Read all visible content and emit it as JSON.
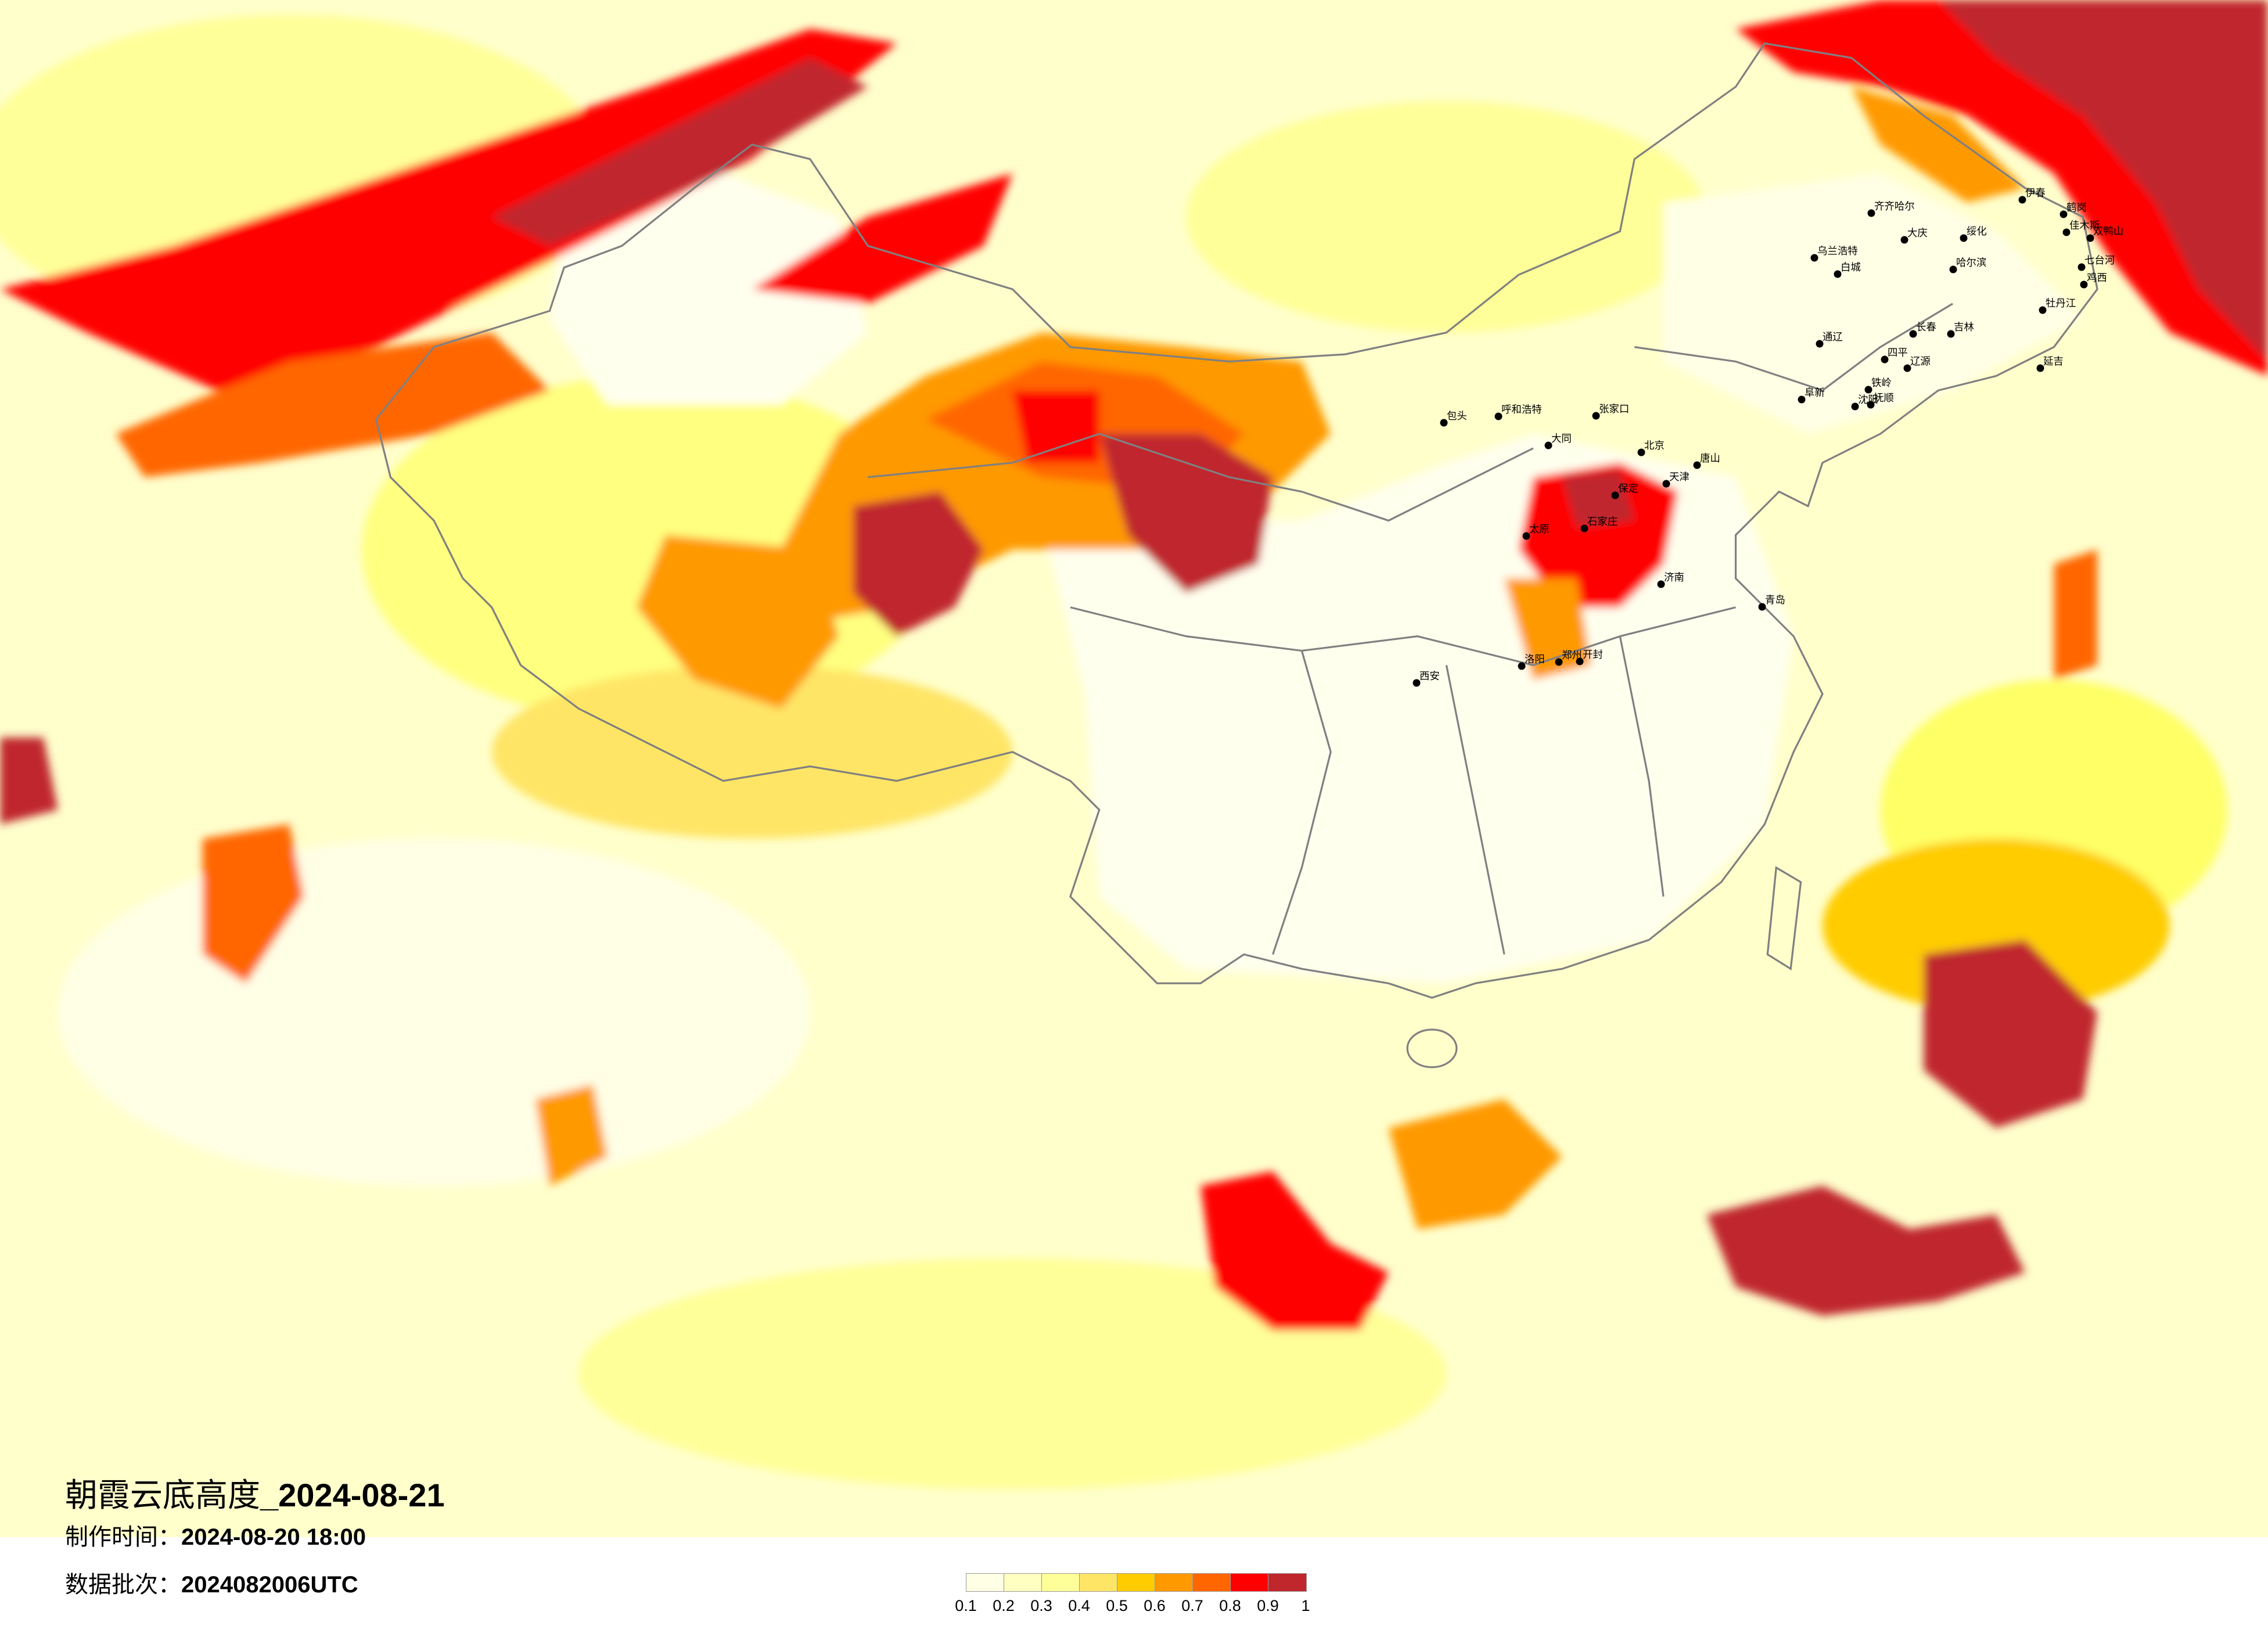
{
  "map": {
    "title": "朝霞云底高度",
    "title_date": "_2024-08-21",
    "made_time_label": "制作时间：",
    "made_time_value": "2024-08-20 18:00",
    "batch_label": "数据批次：",
    "batch_value": "2024082006UTC",
    "cities": [
      "北京",
      "天津",
      "石家庄",
      "济南",
      "郑州",
      "太原",
      "呼和浩特",
      "包头",
      "西安",
      "青岛",
      "大同",
      "张家口",
      "唐山",
      "保定",
      "洛阳",
      "开封",
      "齐齐哈尔",
      "大庆",
      "绥化",
      "哈尔滨",
      "伊春",
      "鹤岗",
      "佳木斯",
      "双鸭山",
      "七台河",
      "鸡西",
      "牡丹江",
      "长春",
      "吉林",
      "通辽",
      "四平",
      "辽源",
      "延吉",
      "乌兰浩特",
      "白城",
      "铁岭",
      "沈阳",
      "抚顺",
      "阜新"
    ]
  },
  "legend": {
    "colors": [
      "#ffffe6",
      "#ffffc2",
      "#ffff99",
      "#ffe566",
      "#ffcc00",
      "#ff9900",
      "#ff6600",
      "#ff0000",
      "#c0272d"
    ],
    "ticks": [
      "0.1",
      "0.2",
      "0.3",
      "0.4",
      "0.5",
      "0.6",
      "0.7",
      "0.8",
      "0.9",
      "1"
    ]
  }
}
